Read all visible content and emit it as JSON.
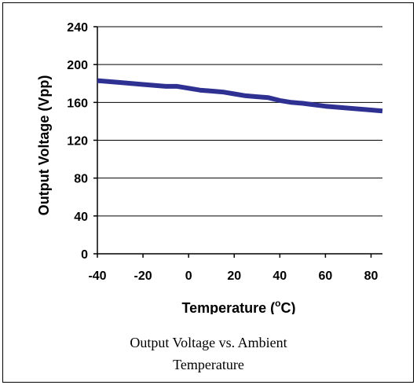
{
  "chart_data": {
    "type": "line",
    "title": "",
    "xlabel_main": "Temperature (",
    "xlabel_sup": "o",
    "xlabel_end": "C)",
    "ylabel": "Output Voltage (Vpp)",
    "xlim": [
      -40,
      85
    ],
    "ylim": [
      0,
      240
    ],
    "xticks": [
      -40,
      -20,
      0,
      20,
      40,
      60,
      80
    ],
    "yticks": [
      0,
      40,
      80,
      120,
      160,
      200,
      240
    ],
    "grid": "horizontal",
    "series": [
      {
        "color": "#2e3192",
        "x": [
          -40,
          -30,
          -20,
          -10,
          -5,
          0,
          5,
          10,
          15,
          20,
          25,
          30,
          35,
          40,
          45,
          50,
          60,
          70,
          80,
          85
        ],
        "y": [
          183,
          181,
          179,
          177,
          177,
          175,
          173,
          172,
          171,
          169,
          167,
          166,
          165,
          162,
          160,
          159,
          156,
          154,
          152,
          151
        ]
      }
    ]
  },
  "caption": {
    "line1": "Output Voltage vs. Ambient",
    "line2": "Temperature"
  }
}
